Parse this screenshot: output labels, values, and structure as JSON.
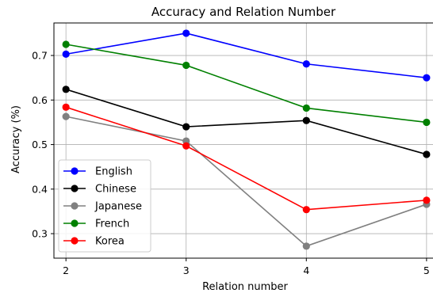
{
  "chart_data": {
    "type": "line",
    "title": "Accuracy and Relation Number",
    "xlabel": "Relation number",
    "ylabel": "Accuracy (%)",
    "x": [
      2,
      3,
      4,
      5
    ],
    "xticks": [
      "2",
      "3",
      "4",
      "5"
    ],
    "yticks": [
      "0.3",
      "0.4",
      "0.5",
      "0.6",
      "0.7"
    ],
    "xlim": [
      1.9,
      5.08
    ],
    "ylim": [
      0.245,
      0.773
    ],
    "grid": true,
    "legend_position": "lower-left",
    "series": [
      {
        "name": "English",
        "color": "#0000ff",
        "values": [
          0.703,
          0.75,
          0.681,
          0.65
        ]
      },
      {
        "name": "Chinese",
        "color": "#000000",
        "values": [
          0.624,
          0.54,
          0.554,
          0.478
        ]
      },
      {
        "name": "Japanese",
        "color": "#808080",
        "values": [
          0.563,
          0.508,
          0.272,
          0.366
        ]
      },
      {
        "name": "French",
        "color": "#008000",
        "values": [
          0.725,
          0.678,
          0.582,
          0.55
        ]
      },
      {
        "name": "Korea",
        "color": "#ff0000",
        "values": [
          0.584,
          0.497,
          0.354,
          0.375
        ]
      }
    ]
  }
}
